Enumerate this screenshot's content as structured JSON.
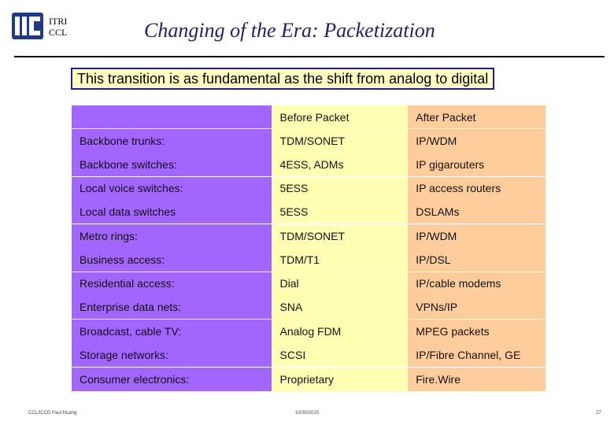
{
  "header": {
    "org_line1": "ITRI",
    "org_line2": "CCL",
    "title": "Changing of the Era: Packetization",
    "subtitle": "This transition is as fundamental as the shift from analog to digital"
  },
  "table": {
    "header": [
      "",
      "Before Packet",
      "After Packet"
    ],
    "rows": [
      [
        "Backbone trunks:",
        "TDM/SONET",
        "IP/WDM"
      ],
      [
        "Backbone switches:",
        "4ESS, ADMs",
        "IP gigarouters"
      ],
      [
        "Local voice switches:",
        "5ESS",
        "IP access routers"
      ],
      [
        "Local data switches",
        "5ESS",
        "DSLAMs"
      ],
      [
        "Metro rings:",
        "TDM/SONET",
        "IP/WDM"
      ],
      [
        "Business access:",
        "TDM/T1",
        "IP/DSL"
      ],
      [
        "Residential access:",
        "Dial",
        "IP/cable modems"
      ],
      [
        "Enterprise data nets:",
        "SNA",
        "VPNs/IP"
      ],
      [
        "Broadcast, cable TV:",
        "Analog FDM",
        "MPEG packets"
      ],
      [
        "Storage networks:",
        "SCSI",
        "IP/Fibre Channel, GE"
      ],
      [
        "Consumer electronics:",
        "Proprietary",
        "Fire.Wire"
      ]
    ]
  },
  "footer": {
    "left": "CCL/ICCD Paul Huang",
    "center": "10/30/2020",
    "right": "27"
  },
  "colors": {
    "title": "#1e1e78",
    "label_column": "#a266ff",
    "before_column": "#ffffb4",
    "after_column": "#ffcc9c",
    "subtitle_bg": "#ffffc0",
    "logo": "#1e3a8a"
  }
}
